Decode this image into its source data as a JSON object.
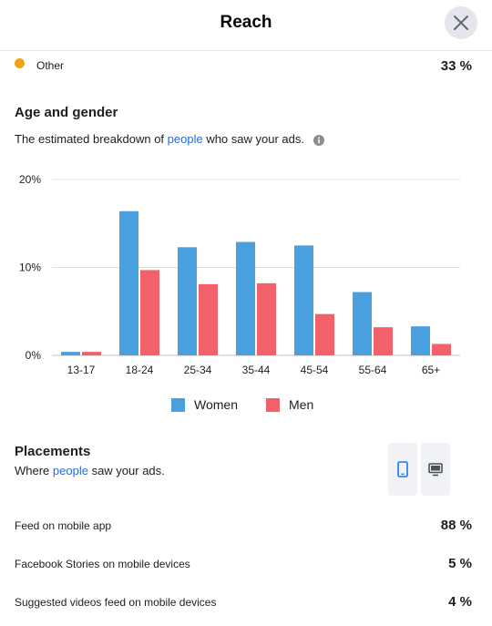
{
  "header": {
    "title": "Reach"
  },
  "other_row": {
    "label": "Other",
    "percent": "33 %",
    "color": "#f0a116"
  },
  "age_gender": {
    "title": "Age and gender",
    "subtitle_before": "The estimated breakdown of ",
    "subtitle_link": "people",
    "subtitle_after": " who saw your ads."
  },
  "chart_data": {
    "type": "bar",
    "categories": [
      "13-17",
      "18-24",
      "25-34",
      "35-44",
      "45-54",
      "55-64",
      "65+"
    ],
    "series": [
      {
        "name": "Women",
        "color": "#4a9fde",
        "values": [
          0.4,
          16.4,
          12.3,
          12.9,
          12.5,
          7.2,
          3.3
        ]
      },
      {
        "name": "Men",
        "color": "#f2606b",
        "values": [
          0.4,
          9.7,
          8.1,
          8.2,
          4.7,
          3.2,
          1.3
        ]
      }
    ],
    "yticks": [
      "0%",
      "10%",
      "20%"
    ],
    "ylim": [
      0,
      20
    ],
    "grid": true,
    "legend": "bottom"
  },
  "placements": {
    "title": "Placements",
    "subtitle_before": "Where ",
    "subtitle_link": "people",
    "subtitle_after": " saw your ads.",
    "rows": [
      {
        "label": "Feed on mobile app",
        "percent": "88 %"
      },
      {
        "label": "Facebook Stories on mobile devices",
        "percent": "5 %"
      },
      {
        "label": "Suggested videos feed on mobile devices",
        "percent": "4 %"
      }
    ],
    "icons": [
      "mobile-icon",
      "desktop-icon"
    ]
  }
}
